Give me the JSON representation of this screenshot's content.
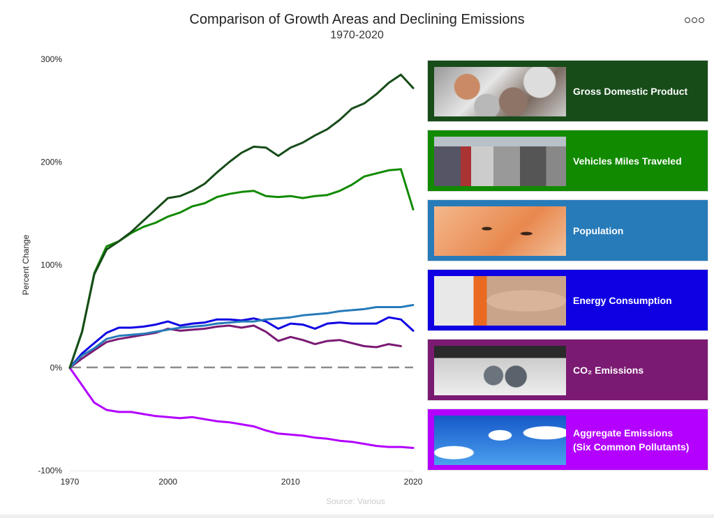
{
  "header": {
    "title": "Comparison of Growth Areas and Declining Emissions",
    "subtitle": "1970-2020",
    "menu_icon": "ellipsis-icon"
  },
  "source": "Source: Various",
  "legend": [
    {
      "label": "Gross Domestic Product",
      "color": "#174c19",
      "image": "coins"
    },
    {
      "label": "Vehicles Miles Traveled",
      "color": "#118a00",
      "image": "traffic"
    },
    {
      "label": "Population",
      "color": "#277bb9",
      "image": "baby"
    },
    {
      "label": "Energy Consumption",
      "color": "#0f00e3",
      "image": "plug"
    },
    {
      "label": "CO₂ Emissions",
      "color": "#7b1a73",
      "image": "exhaust"
    },
    {
      "label": "Aggregate Emissions",
      "label2": "(Six Common Pollutants)",
      "color": "#b300ff",
      "image": "smokestacks"
    }
  ],
  "chart_data": {
    "type": "line",
    "title": "Comparison of Growth Areas and Declining Emissions",
    "subtitle": "1970-2020",
    "xlabel": "",
    "ylabel": "Percent Change",
    "ylim": [
      -100,
      300
    ],
    "yticks": [
      "-100%",
      "0%",
      "100%",
      "200%",
      "300%"
    ],
    "ytick_values": [
      -100,
      0,
      100,
      200,
      300
    ],
    "x": [
      1970,
      1980,
      1990,
      1995,
      1996,
      1997,
      1998,
      1999,
      2000,
      2001,
      2002,
      2003,
      2004,
      2005,
      2006,
      2007,
      2008,
      2009,
      2010,
      2011,
      2012,
      2013,
      2014,
      2015,
      2016,
      2017,
      2018,
      2019,
      2020
    ],
    "xticks": [
      "1970",
      "2000",
      "2010",
      "2020"
    ],
    "xtick_indices": [
      0,
      8,
      18,
      28
    ],
    "baseline": 0,
    "series": [
      {
        "name": "Gross Domestic Product",
        "color": "#174c19",
        "values": [
          0,
          35,
          91,
          115,
          123,
          132,
          143,
          154,
          165,
          167,
          172,
          179,
          190,
          200,
          209,
          215,
          214,
          206,
          214,
          219,
          226,
          232,
          241,
          252,
          257,
          266,
          277,
          285,
          272
        ]
      },
      {
        "name": "Vehicles Miles Traveled",
        "color": "#118a00",
        "values": [
          0,
          35,
          92,
          118,
          123,
          131,
          137,
          141,
          147,
          151,
          157,
          160,
          166,
          169,
          171,
          172,
          167,
          166,
          167,
          165,
          167,
          168,
          172,
          178,
          186,
          189,
          192,
          193,
          154
        ]
      },
      {
        "name": "Population",
        "color": "#277bb9",
        "values": [
          0,
          12,
          19,
          28,
          31,
          32,
          33,
          35,
          37,
          39,
          40,
          41,
          43,
          44,
          45,
          45,
          47,
          48,
          49,
          51,
          52,
          53,
          55,
          56,
          57,
          59,
          59,
          59,
          61
        ]
      },
      {
        "name": "Energy Consumption",
        "color": "#0f00e3",
        "values": [
          0,
          14,
          24,
          34,
          39,
          39,
          40,
          42,
          45,
          41,
          43,
          44,
          47,
          47,
          46,
          48,
          45,
          38,
          43,
          42,
          38,
          43,
          44,
          43,
          43,
          43,
          49,
          47,
          36
        ]
      },
      {
        "name": "CO₂ Emissions",
        "color": "#7b1a73",
        "values": [
          0,
          9,
          17,
          25,
          28,
          30,
          32,
          34,
          38,
          36,
          37,
          38,
          40,
          41,
          39,
          41,
          35,
          26,
          30,
          27,
          23,
          26,
          27,
          24,
          21,
          20,
          23,
          21,
          null
        ]
      },
      {
        "name": "Aggregate Emissions (Six Common Pollutants)",
        "color": "#b300ff",
        "values": [
          0,
          -17,
          -34,
          -41,
          -43,
          -43,
          -45,
          -47,
          -48,
          -49,
          -48,
          -50,
          -52,
          -53,
          -55,
          -57,
          -61,
          -64,
          -65,
          -66,
          -68,
          -69,
          -71,
          -72,
          -74,
          -76,
          -77,
          -77,
          -78
        ]
      }
    ],
    "legend_position": "right",
    "grid": false
  }
}
